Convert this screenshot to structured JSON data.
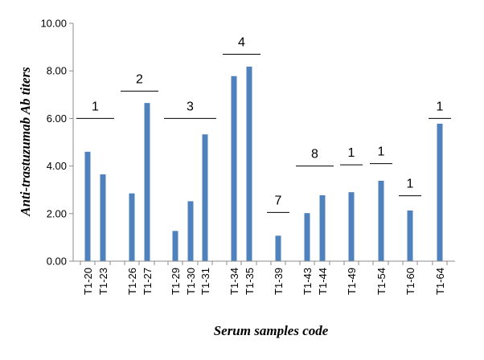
{
  "chart_data": {
    "type": "bar",
    "title": "",
    "xlabel": "Serum samples code",
    "ylabel": "Anti-trastuzumab Ab titers",
    "ylim": [
      0,
      10
    ],
    "yticks": [
      "0.00",
      "2.00",
      "4.00",
      "6.00",
      "8.00",
      "10.00"
    ],
    "grid": false,
    "legend": "none",
    "bar_color": "#4f81bd",
    "categories": [
      "T1-20",
      "T1-23",
      "T1-26",
      "T1-27",
      "T1-29",
      "T1-30",
      "T1-31",
      "T1-34",
      "T1-35",
      "T1-39",
      "T1-43",
      "T1-44",
      "T1-49",
      "T1-54",
      "T1-60",
      "T1-64"
    ],
    "values": [
      4.6,
      3.65,
      2.85,
      6.65,
      1.27,
      2.52,
      5.33,
      7.78,
      8.18,
      1.07,
      2.02,
      2.77,
      2.9,
      3.38,
      2.13,
      5.78
    ],
    "groups": [
      {
        "label": "1",
        "members": [
          0,
          1
        ],
        "level": 6.0
      },
      {
        "label": "2",
        "members": [
          2,
          3
        ],
        "level": 7.15
      },
      {
        "label": "3",
        "members": [
          4,
          5,
          6
        ],
        "level": 6.0
      },
      {
        "label": "4",
        "members": [
          7,
          8
        ],
        "level": 8.7
      },
      {
        "label": "7",
        "members": [
          9
        ],
        "level": 2.05
      },
      {
        "label": "8",
        "members": [
          10,
          11
        ],
        "level": 4.0
      },
      {
        "label": "1",
        "members": [
          12
        ],
        "level": 4.05
      },
      {
        "label": "1",
        "members": [
          13
        ],
        "level": 4.1
      },
      {
        "label": "1",
        "members": [
          14
        ],
        "level": 2.75
      },
      {
        "label": "1",
        "members": [
          15
        ],
        "level": 6.0
      }
    ]
  }
}
